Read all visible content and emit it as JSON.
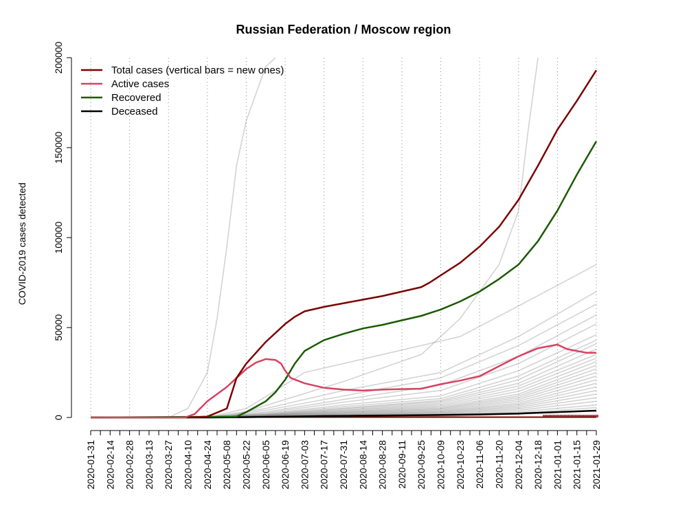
{
  "chart_data": {
    "type": "line",
    "title": "Russian Federation / Moscow region",
    "xlabel": "",
    "ylabel": "COVID-2019 cases detected",
    "xlim": [
      "2020-01-31",
      "2021-01-29"
    ],
    "ylim": [
      0,
      200000
    ],
    "y_ticks": [
      0,
      50000,
      100000,
      150000,
      200000
    ],
    "y_tick_labels": [
      "0",
      "50000",
      "100000",
      "150000",
      "200000"
    ],
    "x_tick_labels": [
      "2020-01-31",
      "2020-02-14",
      "2020-02-28",
      "2020-03-13",
      "2020-03-27",
      "2020-04-10",
      "2020-04-24",
      "2020-05-08",
      "2020-05-22",
      "2020-06-05",
      "2020-06-19",
      "2020-07-03",
      "2020-07-17",
      "2020-07-31",
      "2020-08-14",
      "2020-08-28",
      "2020-09-11",
      "2020-09-25",
      "2020-10-09",
      "2020-10-23",
      "2020-11-06",
      "2020-11-20",
      "2020-12-04",
      "2020-12-18",
      "2021-01-01",
      "2021-01-15",
      "2021-01-29"
    ],
    "minor_ticks_days": 7,
    "grid": "vertical dotted at every other labeled date",
    "legend_position": "top-left",
    "series": [
      {
        "name": "Total cases (vertical bars = new ones)",
        "color": "#7b0000",
        "x": [
          "2020-04-10",
          "2020-04-24",
          "2020-05-08",
          "2020-05-15",
          "2020-05-22",
          "2020-06-05",
          "2020-06-19",
          "2020-06-26",
          "2020-07-03",
          "2020-07-17",
          "2020-07-31",
          "2020-08-14",
          "2020-08-28",
          "2020-09-11",
          "2020-09-25",
          "2020-10-01",
          "2020-10-09",
          "2020-10-23",
          "2020-11-06",
          "2020-11-20",
          "2020-12-04",
          "2020-12-18",
          "2021-01-01",
          "2021-01-15",
          "2021-01-29"
        ],
        "y": [
          0,
          500,
          5000,
          22000,
          30000,
          42000,
          52000,
          56000,
          59000,
          61500,
          63500,
          65500,
          67500,
          70000,
          72500,
          75000,
          79000,
          86000,
          95000,
          106000,
          121000,
          140000,
          160000,
          176000,
          193000
        ]
      },
      {
        "name": "Active cases",
        "color": "#d94060",
        "x": [
          "2020-01-31",
          "2020-04-08",
          "2020-04-15",
          "2020-04-24",
          "2020-05-08",
          "2020-05-15",
          "2020-05-22",
          "2020-05-29",
          "2020-06-05",
          "2020-06-12",
          "2020-06-16",
          "2020-06-19",
          "2020-06-23",
          "2020-07-03",
          "2020-07-17",
          "2020-07-31",
          "2020-08-14",
          "2020-08-28",
          "2020-09-11",
          "2020-09-25",
          "2020-10-09",
          "2020-10-23",
          "2020-11-06",
          "2020-11-20",
          "2020-12-04",
          "2020-12-18",
          "2021-01-01",
          "2021-01-08",
          "2021-01-15",
          "2021-01-22",
          "2021-01-29"
        ],
        "y": [
          0,
          0,
          2000,
          9000,
          17000,
          22000,
          27000,
          30500,
          32500,
          32000,
          30000,
          26000,
          22000,
          19000,
          16500,
          15500,
          15000,
          15500,
          15800,
          16000,
          18500,
          20500,
          23000,
          28500,
          34000,
          38500,
          40500,
          38000,
          37000,
          36000,
          36000
        ]
      },
      {
        "name": "Recovered",
        "color": "#1a5a00",
        "x": [
          "2020-01-31",
          "2020-05-15",
          "2020-05-22",
          "2020-05-29",
          "2020-06-05",
          "2020-06-12",
          "2020-06-19",
          "2020-06-26",
          "2020-07-03",
          "2020-07-10",
          "2020-07-17",
          "2020-07-31",
          "2020-08-14",
          "2020-08-28",
          "2020-09-11",
          "2020-09-25",
          "2020-10-09",
          "2020-10-23",
          "2020-11-06",
          "2020-11-20",
          "2020-12-04",
          "2020-12-18",
          "2021-01-01",
          "2021-01-15",
          "2021-01-29"
        ],
        "y": [
          0,
          500,
          3000,
          6000,
          9000,
          14000,
          21000,
          30000,
          37000,
          40000,
          43000,
          46500,
          49500,
          51500,
          54000,
          56500,
          60000,
          64500,
          70000,
          77000,
          85000,
          98000,
          115000,
          135000,
          153500
        ]
      },
      {
        "name": "Deceased",
        "color": "#000000",
        "x": [
          "2020-01-31",
          "2020-04-24",
          "2020-05-22",
          "2020-06-19",
          "2020-07-17",
          "2020-08-14",
          "2020-09-11",
          "2020-10-09",
          "2020-11-06",
          "2020-12-04",
          "2021-01-01",
          "2021-01-29"
        ],
        "y": [
          0,
          0,
          200,
          500,
          800,
          1000,
          1200,
          1400,
          1700,
          2200,
          3000,
          3800
        ]
      }
    ],
    "background_lines": [
      {
        "x": [
          "2020-03-27",
          "2020-04-10",
          "2020-04-24",
          "2020-05-01",
          "2020-05-08",
          "2020-05-15",
          "2020-05-22",
          "2020-05-29",
          "2020-06-05",
          "2020-06-12"
        ],
        "y": [
          0,
          5000,
          25000,
          55000,
          95000,
          140000,
          165000,
          180000,
          195000,
          200000
        ]
      },
      {
        "x": [
          "2020-05-08",
          "2020-06-19",
          "2020-07-31",
          "2020-09-25",
          "2020-10-23",
          "2020-11-20",
          "2020-12-04",
          "2020-12-11",
          "2020-12-18"
        ],
        "y": [
          0,
          10000,
          20000,
          35000,
          55000,
          85000,
          115000,
          160000,
          200000
        ]
      },
      {
        "x": [
          "2020-04-24",
          "2020-05-22",
          "2020-07-03",
          "2020-08-28",
          "2020-10-23",
          "2020-12-04",
          "2021-01-29"
        ],
        "y": [
          0,
          5000,
          25000,
          35000,
          45000,
          62000,
          85000
        ]
      },
      {
        "x": [
          "2020-04-24",
          "2020-06-05",
          "2020-07-31",
          "2020-10-09",
          "2020-12-04",
          "2021-01-29"
        ],
        "y": [
          0,
          5000,
          15000,
          25000,
          45000,
          70000
        ]
      },
      {
        "x": [
          "2020-04-24",
          "2020-06-05",
          "2020-07-31",
          "2020-10-09",
          "2020-12-04",
          "2021-01-29"
        ],
        "y": [
          0,
          4000,
          12000,
          22000,
          40000,
          63000
        ]
      },
      {
        "x": [
          "2020-04-24",
          "2020-06-05",
          "2020-07-31",
          "2020-10-09",
          "2020-12-04",
          "2021-01-29"
        ],
        "y": [
          0,
          3000,
          10000,
          18000,
          34000,
          57000
        ]
      },
      {
        "x": [
          "2020-04-24",
          "2020-06-05",
          "2020-07-31",
          "2020-10-09",
          "2020-12-04",
          "2021-01-29"
        ],
        "y": [
          0,
          2500,
          8500,
          15000,
          30000,
          52000
        ]
      },
      {
        "x": [
          "2020-04-24",
          "2020-06-05",
          "2020-07-31",
          "2020-10-09",
          "2020-12-04",
          "2021-01-29"
        ],
        "y": [
          0,
          2000,
          7000,
          12000,
          26000,
          46000
        ]
      },
      {
        "x": [
          "2020-04-24",
          "2020-06-05",
          "2020-07-31",
          "2020-10-09",
          "2020-12-04",
          "2021-01-29"
        ],
        "y": [
          0,
          1800,
          6000,
          10500,
          23000,
          43000
        ]
      },
      {
        "x": [
          "2020-04-24",
          "2020-06-05",
          "2020-07-31",
          "2020-10-09",
          "2020-12-04",
          "2021-01-29"
        ],
        "y": [
          0,
          1500,
          5200,
          9500,
          21000,
          41000
        ]
      },
      {
        "x": [
          "2020-04-24",
          "2020-06-05",
          "2020-07-31",
          "2020-10-09",
          "2020-12-04",
          "2021-01-29"
        ],
        "y": [
          0,
          1400,
          4800,
          8800,
          19000,
          38000
        ]
      },
      {
        "x": [
          "2020-04-24",
          "2020-06-05",
          "2020-07-31",
          "2020-10-09",
          "2020-12-04",
          "2021-01-29"
        ],
        "y": [
          0,
          1200,
          4200,
          8000,
          17500,
          35000
        ]
      },
      {
        "x": [
          "2020-04-24",
          "2020-06-05",
          "2020-07-31",
          "2020-10-09",
          "2020-12-04",
          "2021-01-29"
        ],
        "y": [
          0,
          1100,
          3800,
          7200,
          16000,
          33000
        ]
      },
      {
        "x": [
          "2020-04-24",
          "2020-06-05",
          "2020-07-31",
          "2020-10-09",
          "2020-12-04",
          "2021-01-29"
        ],
        "y": [
          0,
          1000,
          3400,
          6500,
          14500,
          31000
        ]
      },
      {
        "x": [
          "2020-04-24",
          "2020-06-05",
          "2020-07-31",
          "2020-10-09",
          "2020-12-04",
          "2021-01-29"
        ],
        "y": [
          0,
          900,
          3000,
          5800,
          13000,
          29000
        ]
      },
      {
        "x": [
          "2020-04-24",
          "2020-06-05",
          "2020-07-31",
          "2020-10-09",
          "2020-12-04",
          "2021-01-29"
        ],
        "y": [
          0,
          800,
          2700,
          5200,
          12000,
          27000
        ]
      },
      {
        "x": [
          "2020-04-24",
          "2020-06-05",
          "2020-07-31",
          "2020-10-09",
          "2020-12-04",
          "2021-01-29"
        ],
        "y": [
          0,
          700,
          2400,
          4700,
          11000,
          25000
        ]
      },
      {
        "x": [
          "2020-04-24",
          "2020-06-05",
          "2020-07-31",
          "2020-10-09",
          "2020-12-04",
          "2021-01-29"
        ],
        "y": [
          0,
          600,
          2100,
          4200,
          10000,
          23000
        ]
      },
      {
        "x": [
          "2020-04-24",
          "2020-06-05",
          "2020-07-31",
          "2020-10-09",
          "2020-12-04",
          "2021-01-29"
        ],
        "y": [
          0,
          500,
          1800,
          3700,
          9000,
          21000
        ]
      },
      {
        "x": [
          "2020-04-24",
          "2020-06-05",
          "2020-07-31",
          "2020-10-09",
          "2020-12-04",
          "2021-01-29"
        ],
        "y": [
          0,
          450,
          1600,
          3300,
          8000,
          19000
        ]
      },
      {
        "x": [
          "2020-04-24",
          "2020-06-05",
          "2020-07-31",
          "2020-10-09",
          "2020-12-04",
          "2021-01-29"
        ],
        "y": [
          0,
          400,
          1400,
          2900,
          7200,
          17000
        ]
      },
      {
        "x": [
          "2020-04-24",
          "2020-06-05",
          "2020-07-31",
          "2020-10-09",
          "2020-12-04",
          "2021-01-29"
        ],
        "y": [
          0,
          350,
          1200,
          2500,
          6400,
          15000
        ]
      },
      {
        "x": [
          "2020-04-24",
          "2020-06-05",
          "2020-07-31",
          "2020-10-09",
          "2020-12-04",
          "2021-01-29"
        ],
        "y": [
          0,
          300,
          1000,
          2200,
          5600,
          13000
        ]
      },
      {
        "x": [
          "2020-04-24",
          "2020-06-05",
          "2020-07-31",
          "2020-10-09",
          "2020-12-04",
          "2021-01-29"
        ],
        "y": [
          0,
          250,
          800,
          1800,
          4800,
          11000
        ]
      },
      {
        "x": [
          "2020-04-24",
          "2020-06-05",
          "2020-07-31",
          "2020-10-09",
          "2020-12-04",
          "2021-01-29"
        ],
        "y": [
          0,
          200,
          600,
          1500,
          4000,
          9000
        ]
      },
      {
        "x": [
          "2020-04-24",
          "2020-06-05",
          "2020-07-31",
          "2020-10-09",
          "2020-12-04",
          "2021-01-29"
        ],
        "y": [
          0,
          150,
          450,
          1200,
          3200,
          7000
        ]
      },
      {
        "x": [
          "2020-04-24",
          "2020-06-05",
          "2020-07-31",
          "2020-10-09",
          "2020-12-04",
          "2021-01-29"
        ],
        "y": [
          0,
          120,
          350,
          900,
          2500,
          5500
        ]
      },
      {
        "x": [
          "2020-04-24",
          "2020-06-05",
          "2020-07-31",
          "2020-10-09",
          "2020-12-04",
          "2021-01-29"
        ],
        "y": [
          0,
          80,
          250,
          650,
          1800,
          4000
        ]
      }
    ]
  }
}
